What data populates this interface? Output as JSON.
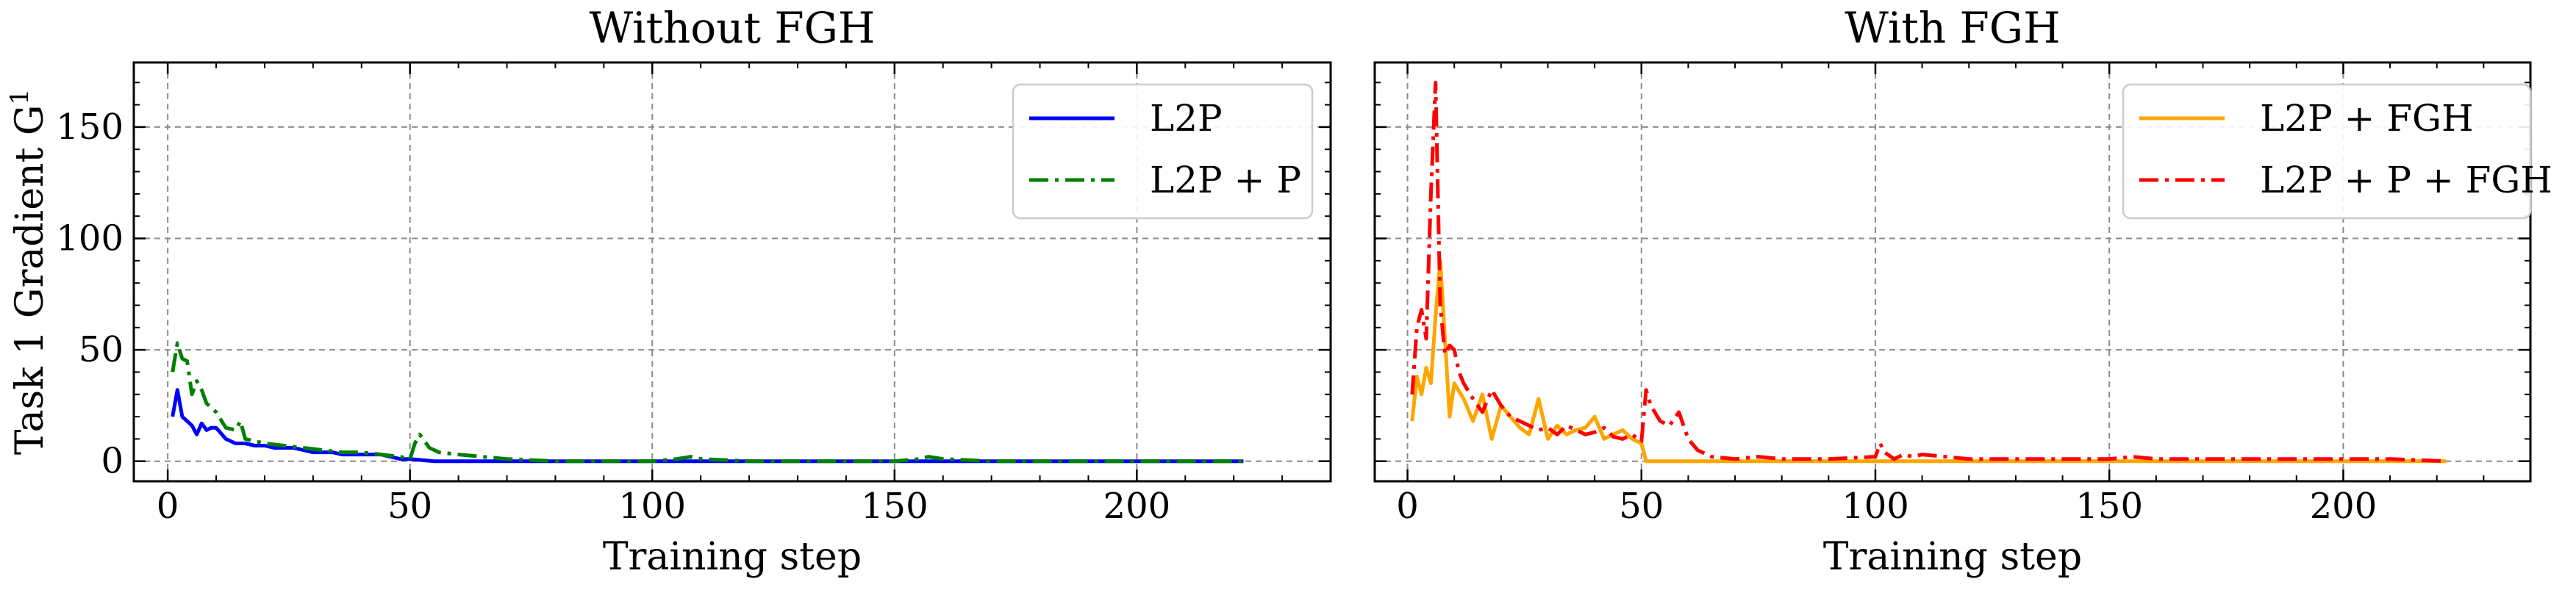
{
  "chart_data": [
    {
      "type": "line",
      "title": "Without FGH",
      "xlabel": "Training step",
      "ylabel": "Task 1 Gradient G",
      "ylabel_superscript": "1",
      "xlim": [
        -7,
        240
      ],
      "ylim": [
        -9,
        179
      ],
      "xticks": [
        0,
        50,
        100,
        150,
        200
      ],
      "yticks": [
        0,
        50,
        100,
        150
      ],
      "grid": true,
      "legend_position": "top-right",
      "series": [
        {
          "name": "L2P",
          "color": "#0000ff",
          "dash": "solid",
          "x": [
            1,
            2,
            3,
            4,
            5,
            6,
            7,
            8,
            9,
            10,
            12,
            14,
            16,
            18,
            20,
            22,
            24,
            26,
            28,
            30,
            32,
            34,
            36,
            38,
            40,
            42,
            44,
            46,
            48,
            50,
            55,
            60,
            70,
            80,
            90,
            100,
            110,
            120,
            130,
            140,
            150,
            160,
            170,
            180,
            190,
            200,
            210,
            222
          ],
          "y": [
            20,
            32,
            20,
            18,
            16,
            12,
            17,
            14,
            15,
            15,
            10,
            8,
            8,
            7,
            7,
            6,
            6,
            6,
            5,
            4,
            4,
            4,
            3,
            3,
            3,
            3,
            3,
            2,
            1,
            1,
            0,
            0,
            0,
            0,
            0,
            0,
            0,
            0,
            0,
            0,
            0,
            0,
            0,
            0,
            0,
            0,
            0,
            0
          ]
        },
        {
          "name": "L2P + P",
          "color": "#008000",
          "dash": "dashdot",
          "x": [
            1,
            2,
            3,
            4,
            5,
            6,
            7,
            8,
            10,
            12,
            14,
            15,
            16,
            18,
            20,
            24,
            28,
            32,
            36,
            40,
            44,
            48,
            50,
            51,
            52,
            54,
            56,
            60,
            70,
            80,
            90,
            100,
            105,
            108,
            110,
            120,
            130,
            140,
            150,
            155,
            157,
            160,
            170,
            180,
            190,
            200,
            210,
            222
          ],
          "y": [
            40,
            53,
            46,
            45,
            30,
            36,
            32,
            26,
            22,
            15,
            14,
            18,
            10,
            9,
            8,
            7,
            6,
            5,
            4,
            4,
            3,
            2,
            1,
            8,
            12,
            6,
            4,
            3,
            1,
            0,
            0,
            0,
            1,
            2,
            1,
            0,
            0,
            0,
            0,
            1,
            2,
            1,
            0,
            0,
            0,
            0,
            0,
            0
          ]
        }
      ]
    },
    {
      "type": "line",
      "title": "With FGH",
      "xlabel": "Training step",
      "xlim": [
        -7,
        240
      ],
      "ylim": [
        -9,
        179
      ],
      "xticks": [
        0,
        50,
        100,
        150,
        200
      ],
      "yticks": [
        0,
        50,
        100,
        150
      ],
      "grid": true,
      "legend_position": "top-right",
      "series": [
        {
          "name": "L2P + FGH",
          "color": "#ffa500",
          "dash": "solid",
          "x": [
            1,
            2,
            3,
            4,
            5,
            6,
            7,
            8,
            9,
            10,
            12,
            14,
            16,
            18,
            20,
            22,
            24,
            26,
            28,
            30,
            32,
            34,
            36,
            38,
            40,
            42,
            44,
            46,
            48,
            50,
            51,
            55,
            60,
            70,
            80,
            90,
            100,
            110,
            120,
            130,
            140,
            150,
            160,
            170,
            180,
            190,
            200,
            210,
            222
          ],
          "y": [
            18,
            38,
            30,
            42,
            35,
            65,
            90,
            55,
            20,
            35,
            28,
            18,
            30,
            10,
            25,
            20,
            15,
            12,
            28,
            10,
            16,
            12,
            14,
            15,
            20,
            10,
            12,
            14,
            10,
            8,
            0,
            0,
            0,
            0,
            0,
            0,
            0,
            0,
            0,
            0,
            0,
            0,
            0,
            0,
            0,
            0,
            0,
            0,
            0
          ]
        },
        {
          "name": "L2P + P + FGH",
          "color": "#ff0000",
          "dash": "dashdot",
          "x": [
            1,
            2,
            3,
            4,
            5,
            6,
            7,
            8,
            9,
            10,
            11,
            12,
            14,
            16,
            18,
            20,
            22,
            24,
            26,
            28,
            30,
            32,
            34,
            36,
            38,
            40,
            42,
            44,
            46,
            48,
            50,
            51,
            52,
            54,
            56,
            58,
            60,
            62,
            65,
            70,
            75,
            80,
            90,
            100,
            101,
            102,
            104,
            106,
            108,
            110,
            120,
            130,
            140,
            150,
            155,
            160,
            170,
            180,
            190,
            200,
            210,
            222
          ],
          "y": [
            30,
            60,
            68,
            55,
            120,
            170,
            70,
            48,
            52,
            50,
            40,
            35,
            28,
            22,
            32,
            25,
            20,
            18,
            16,
            14,
            15,
            12,
            16,
            14,
            12,
            13,
            15,
            11,
            10,
            12,
            9,
            32,
            25,
            18,
            16,
            22,
            10,
            5,
            2,
            1,
            2,
            1,
            1,
            2,
            8,
            4,
            1,
            3,
            2,
            3,
            1,
            1,
            1,
            1,
            2,
            1,
            1,
            1,
            1,
            1,
            1,
            0
          ]
        }
      ]
    }
  ]
}
